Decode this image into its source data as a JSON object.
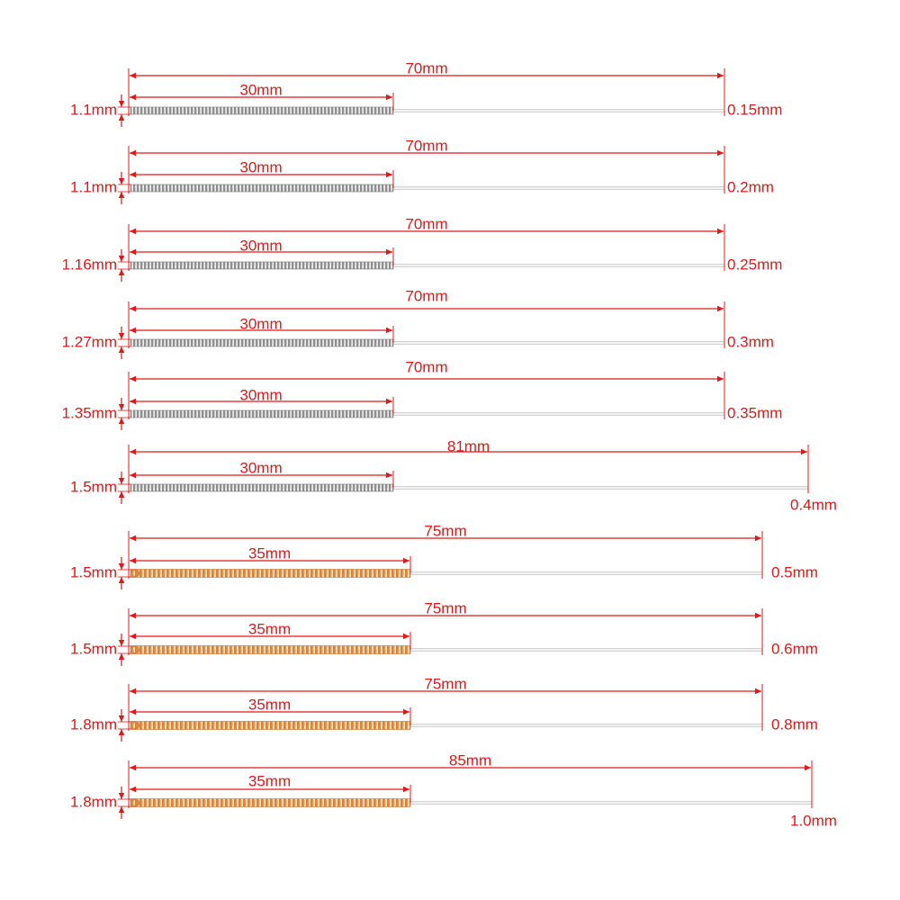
{
  "colors": {
    "dimension_red": "#e01818",
    "steel_coil": "#8f8f8f",
    "steel_coil_light": "#dcdcdc",
    "copper_coil": "#d9843a",
    "copper_coil_light": "#f4c08a",
    "needle_shaft": "#c9c9c9"
  },
  "needles": [
    {
      "handle_diameter": "1.1mm",
      "handle_length": "30mm",
      "total_length": "70mm",
      "needle_diameter": "0.15mm",
      "handle_material": "steel"
    },
    {
      "handle_diameter": "1.1mm",
      "handle_length": "30mm",
      "total_length": "70mm",
      "needle_diameter": "0.2mm",
      "handle_material": "steel"
    },
    {
      "handle_diameter": "1.16mm",
      "handle_length": "30mm",
      "total_length": "70mm",
      "needle_diameter": "0.25mm",
      "handle_material": "steel"
    },
    {
      "handle_diameter": "1.27mm",
      "handle_length": "30mm",
      "total_length": "70mm",
      "needle_diameter": "0.3mm",
      "handle_material": "steel"
    },
    {
      "handle_diameter": "1.35mm",
      "handle_length": "30mm",
      "total_length": "70mm",
      "needle_diameter": "0.35mm",
      "handle_material": "steel"
    },
    {
      "handle_diameter": "1.5mm",
      "handle_length": "30mm",
      "total_length": "81mm",
      "needle_diameter": "0.4mm",
      "handle_material": "steel"
    },
    {
      "handle_diameter": "1.5mm",
      "handle_length": "35mm",
      "total_length": "75mm",
      "needle_diameter": "0.5mm",
      "handle_material": "copper"
    },
    {
      "handle_diameter": "1.5mm",
      "handle_length": "35mm",
      "total_length": "75mm",
      "needle_diameter": "0.6mm",
      "handle_material": "copper"
    },
    {
      "handle_diameter": "1.8mm",
      "handle_length": "35mm",
      "total_length": "75mm",
      "needle_diameter": "0.8mm",
      "handle_material": "copper"
    },
    {
      "handle_diameter": "1.8mm",
      "handle_length": "35mm",
      "total_length": "85mm",
      "needle_diameter": "1.0mm",
      "handle_material": "copper"
    }
  ]
}
